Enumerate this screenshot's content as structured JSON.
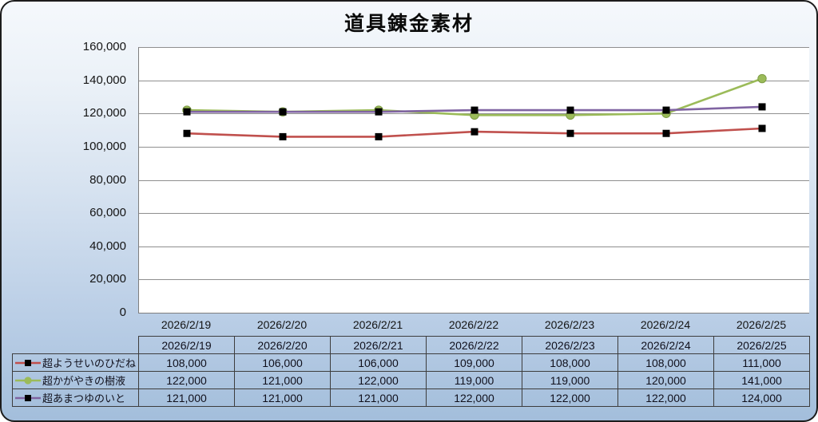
{
  "chart_data": {
    "type": "line",
    "title": "道具錬金素材",
    "categories": [
      "2026/2/19",
      "2026/2/20",
      "2026/2/21",
      "2026/2/22",
      "2026/2/23",
      "2026/2/24",
      "2026/2/25"
    ],
    "series": [
      {
        "name": "超ようせいのひだね",
        "values": [
          108000,
          106000,
          106000,
          109000,
          108000,
          108000,
          111000
        ],
        "line_color": "#c0504d",
        "marker": "square",
        "marker_color": "#000000"
      },
      {
        "name": "超かがやきの樹液",
        "values": [
          122000,
          121000,
          122000,
          119000,
          119000,
          120000,
          141000
        ],
        "line_color": "#9bbb59",
        "marker": "circle",
        "marker_color": "#9bbb59"
      },
      {
        "name": "超あまつゆのいと",
        "values": [
          121000,
          121000,
          121000,
          122000,
          122000,
          122000,
          124000
        ],
        "line_color": "#8064a2",
        "marker": "square",
        "marker_color": "#000000"
      }
    ],
    "xlabel": "",
    "ylabel": "",
    "ylim": [
      0,
      160000
    ],
    "ytick_step": 20000,
    "ytick_labels": [
      "0",
      "20,000",
      "40,000",
      "60,000",
      "80,000",
      "100,000",
      "120,000",
      "140,000",
      "160,000"
    ],
    "grid": "horizontal-only",
    "gridline_color": "#8f8f8f",
    "plot_background": "#ffffff",
    "legend_position": "table-left-column"
  },
  "table": {
    "column_headers": [
      "2026/2/19",
      "2026/2/20",
      "2026/2/21",
      "2026/2/22",
      "2026/2/23",
      "2026/2/24",
      "2026/2/25"
    ],
    "rows": [
      {
        "label": "超ようせいのひだね",
        "values": [
          "108,000",
          "106,000",
          "106,000",
          "109,000",
          "108,000",
          "108,000",
          "111,000"
        ]
      },
      {
        "label": "超かがやきの樹液",
        "values": [
          "122,000",
          "121,000",
          "122,000",
          "119,000",
          "119,000",
          "120,000",
          "141,000"
        ]
      },
      {
        "label": "超あまつゆのいと",
        "values": [
          "121,000",
          "121,000",
          "121,000",
          "122,000",
          "122,000",
          "122,000",
          "124,000"
        ]
      }
    ]
  },
  "colors": {
    "series_red": "#c0504d",
    "series_green": "#9bbb59",
    "series_purple": "#8064a2",
    "marker_black": "#000000",
    "panel_border": "#1c1c1c",
    "panel_background_top": "#f5f8fc",
    "panel_background_bottom": "#a3bedb",
    "table_border": "#3d3d3d"
  }
}
